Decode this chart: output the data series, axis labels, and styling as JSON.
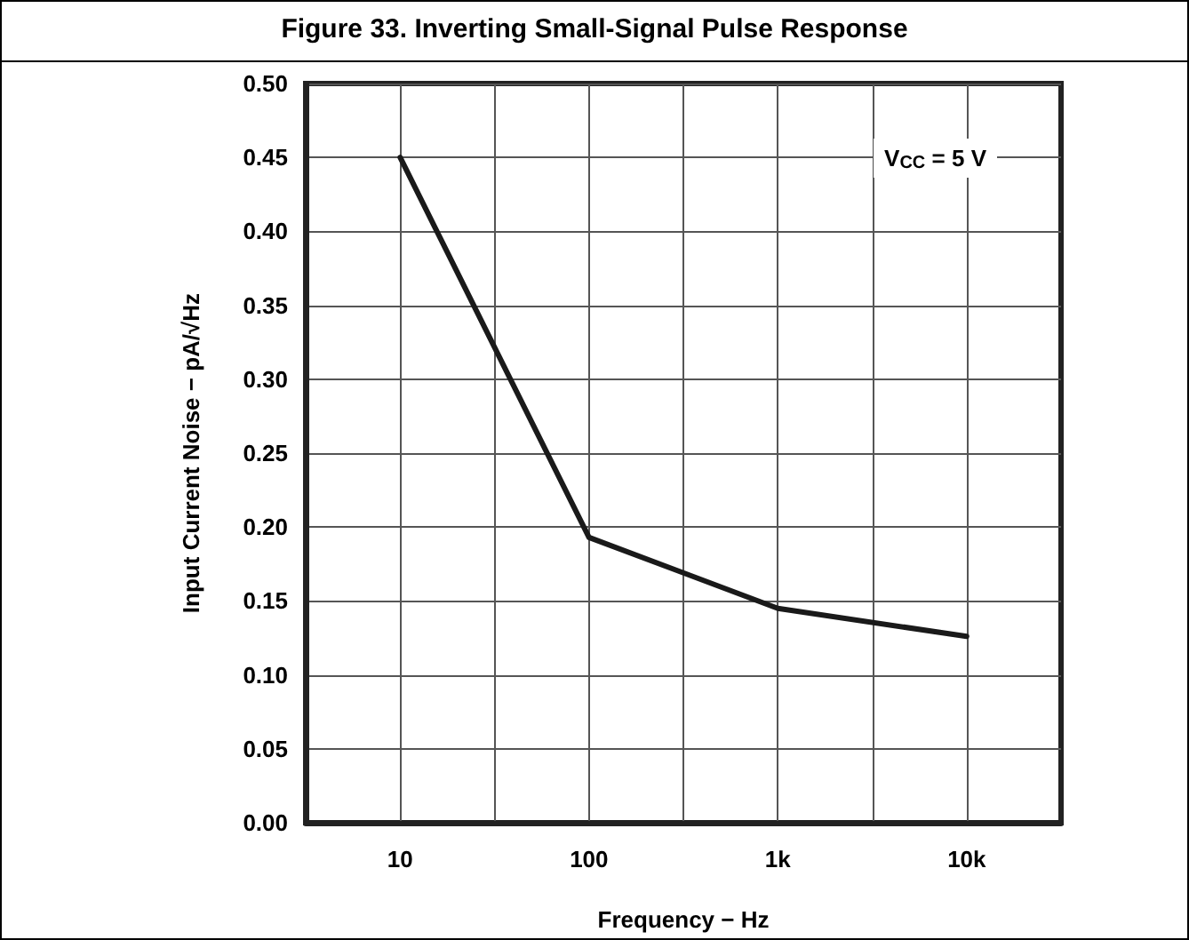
{
  "chart_data": {
    "type": "line",
    "title": "Figure 33. Inverting Small-Signal Pulse Response",
    "xlabel": "Frequency − Hz",
    "ylabel": "Input Current Noise − pA/√Hz",
    "annotations": [
      "V$_{CC}$ = 5 V"
    ],
    "x": [
      10,
      100,
      1000,
      10000
    ],
    "series": [
      {
        "color": "#1a1a1a",
        "values": [
          0.45,
          0.193,
          0.145,
          0.126
        ]
      }
    ],
    "log": "x",
    "xlim": [
      3.16,
      31600
    ],
    "xticks": [
      10,
      {
        "value": 31.6,
        "label": null
      },
      100,
      {
        "value": 316,
        "label": null
      },
      {
        "value": 1000,
        "label": "1k"
      },
      {
        "value": 3160,
        "label": null
      },
      {
        "value": 10000,
        "label": "10k"
      }
    ],
    "ylim": [
      0,
      0.5
    ],
    "yticks": [
      {
        "value": 0,
        "label": "0.00"
      },
      0.05,
      {
        "value": 0.1,
        "label": "0.10"
      },
      0.15,
      {
        "value": 0.2,
        "label": "0.20"
      },
      0.25,
      {
        "value": 0.3,
        "label": "0.30"
      },
      0.35,
      {
        "value": 0.4,
        "label": "0.40"
      },
      0.45,
      {
        "value": 0.5,
        "label": "0.50"
      }
    ],
    "grid": true,
    "marker": "none",
    "line_style": "solid"
  }
}
